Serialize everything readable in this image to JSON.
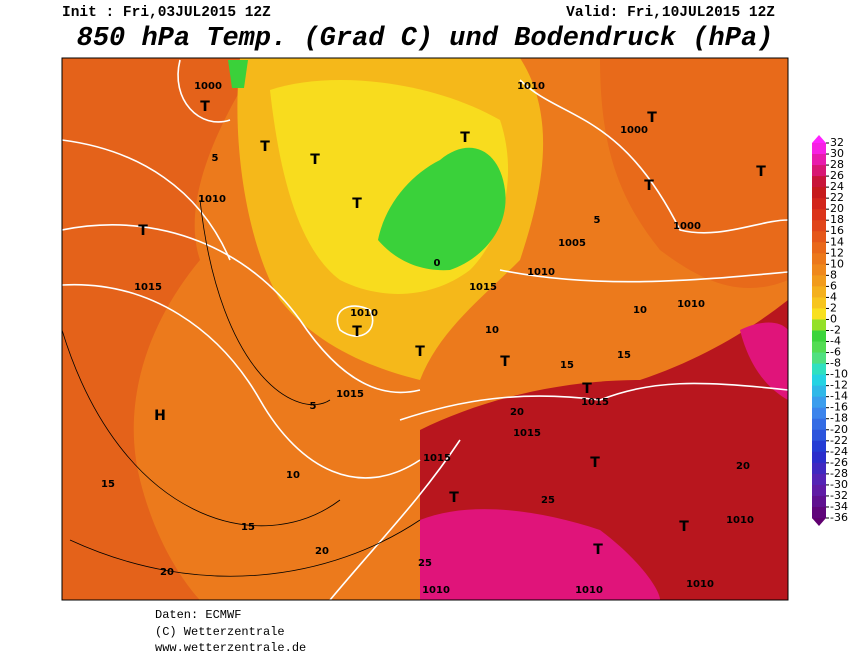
{
  "header": {
    "init": "Init : Fri,03JUL2015 12Z",
    "valid": "Valid: Fri,10JUL2015 12Z",
    "title": "850 hPa Temp. (Grad C) und Bodendruck (hPa)"
  },
  "colorbar": {
    "ticks": [
      32,
      30,
      28,
      26,
      24,
      22,
      20,
      18,
      16,
      14,
      12,
      10,
      8,
      6,
      4,
      2,
      0,
      -2,
      -4,
      -6,
      -8,
      -10,
      -12,
      -14,
      -16,
      -18,
      -20,
      -22,
      -24,
      -26,
      -28,
      -30,
      -32,
      -34,
      -36
    ]
  },
  "map": {
    "labels": [
      "1000",
      "T",
      "T",
      "5",
      "1010",
      "T",
      "1015",
      "H",
      "5",
      "10",
      "15",
      "20",
      "20",
      "15",
      "1010",
      "T",
      "1015",
      "T",
      "T",
      "0",
      "1015",
      "10",
      "T",
      "T",
      "15",
      "15",
      "T",
      "1015",
      "20",
      "1015",
      "T",
      "25",
      "T",
      "1015",
      "T",
      "T",
      "1010",
      "20",
      "1000",
      "T",
      "T",
      "1000",
      "1005",
      "1010",
      "1010",
      "T",
      "1010",
      "T",
      "5",
      "25",
      "1010",
      "1010",
      "1010",
      "10"
    ]
  },
  "footer": {
    "source": "Daten: ECMWF",
    "copyright": "(C) Wetterzentrale",
    "url": "www.wetterzentrale.de"
  }
}
